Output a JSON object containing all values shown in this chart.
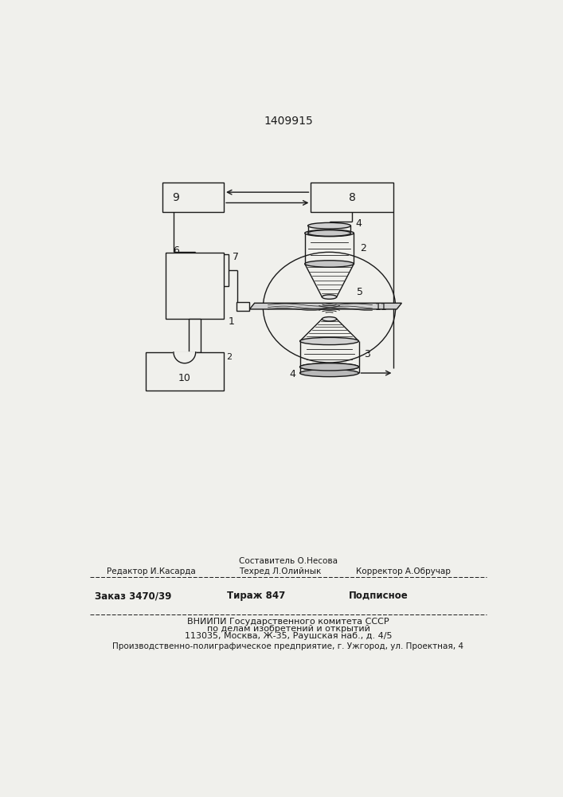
{
  "patent_number": "1409915",
  "bg_color": "#f0f0ec",
  "line_color": "#1a1a1a",
  "lw": 1.0,
  "footer_line1_center": "Составитель О.Несова",
  "footer_editor": "Редактор И.Касарда",
  "footer_techred": "Техред Л.Олийнык",
  "footer_corrector": "Корректор А.Обручар",
  "footer_zakaz": "Заказ 3470/39",
  "footer_tirazh": "Тираж 847",
  "footer_podpisnoe": "Подписное",
  "footer_vniipи1": "ВНИИПИ Государственного комитета СССР",
  "footer_vniipи2": "по делам изобретений и открытий",
  "footer_vniipи3": "113035, Москва, Ж-35, Раушская наб., д. 4/5",
  "footer_factory": "Производственно-полиграфическое предприятие, г. Ужгород, ул. Проектная, 4"
}
